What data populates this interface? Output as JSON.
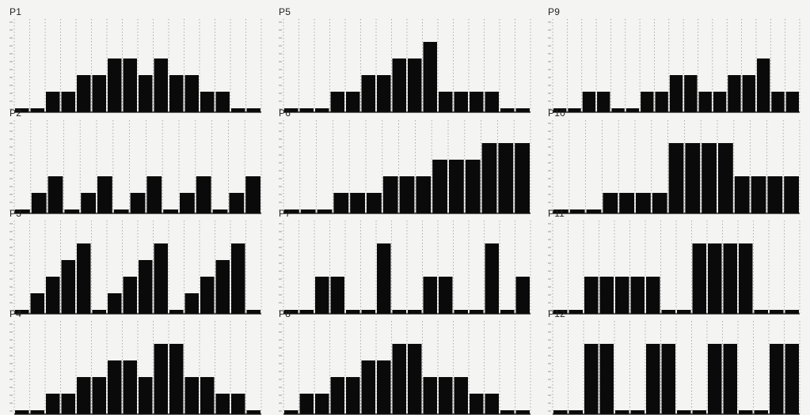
{
  "colors": {
    "background": "#f4f4f2",
    "bar": "#0a0a0a",
    "axis": "#111111",
    "guide": "#9a9a9a"
  },
  "chart_data": [
    {
      "type": "bar",
      "title": "P1",
      "ylim": [
        0,
        5
      ],
      "values": [
        0,
        0,
        1,
        1,
        2,
        2,
        3,
        3,
        2,
        3,
        2,
        2,
        1,
        1,
        0,
        0
      ]
    },
    {
      "type": "bar",
      "title": "P5",
      "ylim": [
        0,
        5
      ],
      "values": [
        0,
        0,
        0,
        1,
        1,
        2,
        2,
        3,
        3,
        4,
        1,
        1,
        1,
        1,
        0,
        0
      ]
    },
    {
      "type": "bar",
      "title": "P9",
      "ylim": [
        0,
        5
      ],
      "values": [
        0,
        0,
        1,
        1,
        0,
        0,
        1,
        1,
        2,
        2,
        1,
        1,
        2,
        2,
        3,
        1,
        1
      ]
    },
    {
      "type": "bar",
      "title": "P2",
      "ylim": [
        0,
        5
      ],
      "values": [
        0,
        1,
        2,
        0,
        1,
        2,
        0,
        1,
        2,
        0,
        1,
        2,
        0,
        1,
        2
      ]
    },
    {
      "type": "bar",
      "title": "P6",
      "ylim": [
        0,
        5
      ],
      "values": [
        0,
        0,
        0,
        1,
        1,
        1,
        2,
        2,
        2,
        3,
        3,
        3,
        4,
        4,
        4
      ]
    },
    {
      "type": "bar",
      "title": "P10",
      "ylim": [
        0,
        5
      ],
      "values": [
        0,
        0,
        0,
        1,
        1,
        1,
        1,
        4,
        4,
        4,
        4,
        2,
        2,
        2,
        2
      ]
    },
    {
      "type": "bar",
      "title": "P3",
      "ylim": [
        0,
        5
      ],
      "values": [
        0,
        1,
        2,
        3,
        4,
        0,
        1,
        2,
        3,
        4,
        0,
        1,
        2,
        3,
        4,
        0
      ]
    },
    {
      "type": "bar",
      "title": "P7",
      "ylim": [
        0,
        5
      ],
      "values": [
        0,
        0,
        2,
        2,
        0,
        0,
        4,
        0,
        0,
        2,
        2,
        0,
        0,
        4,
        0,
        2
      ]
    },
    {
      "type": "bar",
      "title": "P11",
      "ylim": [
        0,
        5
      ],
      "values": [
        0,
        0,
        2,
        2,
        2,
        2,
        2,
        0,
        0,
        4,
        4,
        4,
        4,
        0,
        0,
        0
      ]
    },
    {
      "type": "bar",
      "title": "P4",
      "ylim": [
        0,
        5
      ],
      "values": [
        0,
        0,
        1,
        1,
        2,
        2,
        3,
        3,
        2,
        4,
        4,
        2,
        2,
        1,
        1,
        0
      ]
    },
    {
      "type": "bar",
      "title": "P8",
      "ylim": [
        0,
        5
      ],
      "values": [
        0,
        1,
        1,
        2,
        2,
        3,
        3,
        4,
        4,
        2,
        2,
        2,
        1,
        1,
        0,
        0
      ]
    },
    {
      "type": "bar",
      "title": "P12",
      "ylim": [
        0,
        5
      ],
      "values": [
        0,
        0,
        4,
        4,
        0,
        0,
        4,
        4,
        0,
        0,
        4,
        4,
        0,
        0,
        4,
        4
      ]
    }
  ]
}
